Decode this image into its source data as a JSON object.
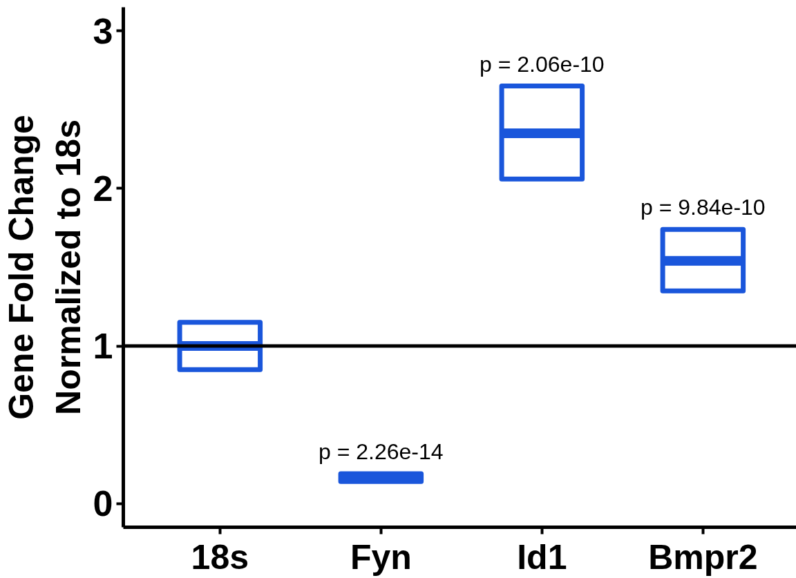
{
  "chart_data": {
    "type": "box",
    "categories": [
      "18s",
      "Fyn",
      "Id1",
      "Bmpr2"
    ],
    "ylabel": "Gene Fold Change\nNormalized to 18s",
    "boxes": [
      {
        "low": 0.85,
        "q1": 0.85,
        "median": 1.0,
        "q3": 1.15,
        "high": 1.15
      },
      {
        "low": 0.14,
        "q1": 0.14,
        "median": 0.16,
        "q3": 0.19,
        "high": 0.19
      },
      {
        "low": 2.06,
        "q1": 2.06,
        "median": 2.35,
        "q3": 2.65,
        "high": 2.65
      },
      {
        "low": 1.35,
        "q1": 1.35,
        "median": 1.54,
        "q3": 1.74,
        "high": 1.74
      }
    ],
    "color": "#1a56db",
    "ylim": [
      -0.15,
      3.15
    ],
    "yticks": [
      0,
      1,
      2,
      3
    ],
    "ref_lines": [
      {
        "axis": "y",
        "value": 1,
        "color": "#000000"
      }
    ],
    "annotations": [
      {
        "text": "p = 2.26e-14",
        "x": "Fyn",
        "y": 0.19
      },
      {
        "text": "p = 2.06e-10",
        "x": "Id1",
        "y": 2.65
      },
      {
        "text": "p = 9.84e-10",
        "x": "Bmpr2",
        "y": 1.74
      }
    ],
    "grid": false
  }
}
